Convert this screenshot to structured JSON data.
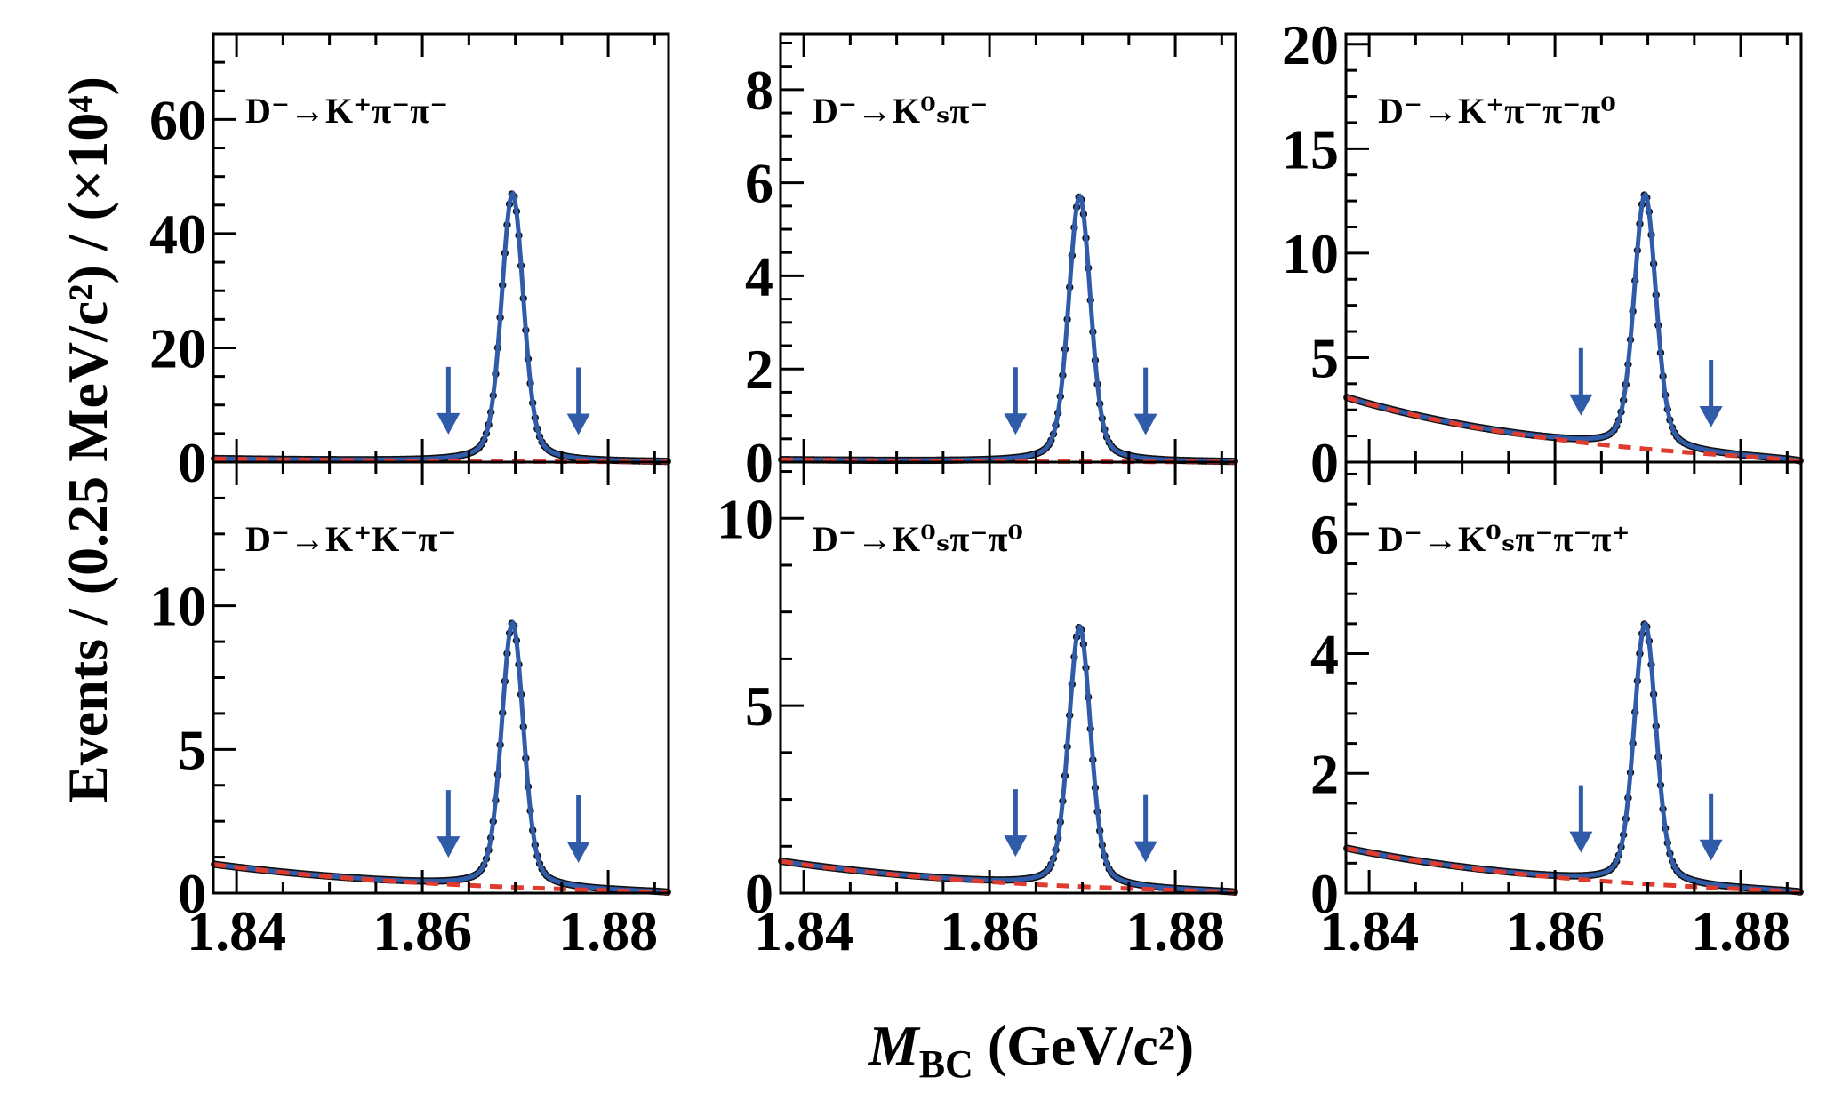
{
  "figure": {
    "ylabel": "Events / (0.25 MeV/c²) / (×10⁴)",
    "xlabel": "M_BC (GeV/c²)",
    "xlabel_main": "M",
    "xlabel_sub": "BC",
    "xlabel_rest": " (GeV/c²)"
  },
  "colors": {
    "signal_fit": "#2f5ba8",
    "background_fit": "#e03b2f",
    "data_points": "#111111",
    "arrow": "#2f5ba8"
  },
  "chart_data": [
    {
      "type": "scatter",
      "label": "D⁻→K⁺π⁻π⁻",
      "xlim": [
        1.8375,
        1.8865
      ],
      "ylim": [
        0,
        75
      ],
      "x_ticks": [
        "1.84",
        "1.86",
        "1.88"
      ],
      "y_ticks": [
        "0",
        "20",
        "40",
        "60"
      ],
      "signal_window": [
        1.8628,
        1.8768
      ],
      "peak_x": 1.8697,
      "peak_height": 47,
      "background_level": 0.6,
      "series": [
        {
          "name": "",
          "values": []
        }
      ]
    },
    {
      "type": "scatter",
      "label": "D⁻→K⁰ₛπ⁻",
      "xlim": [
        1.8375,
        1.8865
      ],
      "ylim": [
        0,
        9.2
      ],
      "x_ticks": [
        "1.84",
        "1.86",
        "1.88"
      ],
      "y_ticks": [
        "0",
        "2",
        "4",
        "6",
        "8"
      ],
      "signal_window": [
        1.8628,
        1.8768
      ],
      "peak_x": 1.8697,
      "peak_height": 5.7,
      "background_level": 0.05,
      "series": [
        {
          "name": "",
          "values": []
        }
      ]
    },
    {
      "type": "scatter",
      "label": "D⁻→K⁺π⁻π⁻π⁰",
      "xlim": [
        1.8375,
        1.8865
      ],
      "ylim": [
        0,
        20.5
      ],
      "x_ticks": [
        "1.84",
        "1.86",
        "1.88"
      ],
      "y_ticks": [
        "0",
        "5",
        "10",
        "15",
        "20"
      ],
      "signal_window": [
        1.8628,
        1.8768
      ],
      "peak_x": 1.8697,
      "peak_height": 12.8,
      "background_level": 3.1,
      "series": [
        {
          "name": "",
          "values": []
        }
      ]
    },
    {
      "type": "scatter",
      "label": "D⁻→K⁺K⁻π⁻",
      "xlim": [
        1.8375,
        1.8865
      ],
      "ylim": [
        0,
        15
      ],
      "x_ticks": [
        "1.84",
        "1.86",
        "1.88"
      ],
      "y_ticks": [
        "0",
        "5",
        "10"
      ],
      "signal_window": [
        1.8628,
        1.8768
      ],
      "peak_x": 1.8697,
      "peak_height": 9.4,
      "background_level": 1.0,
      "series": [
        {
          "name": "",
          "values": []
        }
      ]
    },
    {
      "type": "scatter",
      "label": "D⁻→K⁰ₛπ⁻π⁰",
      "xlim": [
        1.8375,
        1.8865
      ],
      "ylim": [
        0,
        11.5
      ],
      "x_ticks": [
        "1.84",
        "1.86",
        "1.88"
      ],
      "y_ticks": [
        "0",
        "5",
        "10"
      ],
      "signal_window": [
        1.8628,
        1.8768
      ],
      "peak_x": 1.8697,
      "peak_height": 7.1,
      "background_level": 0.85,
      "series": [
        {
          "name": "",
          "values": []
        }
      ]
    },
    {
      "type": "scatter",
      "label": "D⁻→K⁰ₛπ⁻π⁻π⁺",
      "xlim": [
        1.8375,
        1.8865
      ],
      "ylim": [
        0,
        7.2
      ],
      "x_ticks": [
        "1.84",
        "1.86",
        "1.88"
      ],
      "y_ticks": [
        "0",
        "2",
        "4",
        "6"
      ],
      "signal_window": [
        1.8628,
        1.8768
      ],
      "peak_x": 1.8697,
      "peak_height": 4.5,
      "background_level": 0.75,
      "series": [
        {
          "name": "",
          "values": []
        }
      ]
    }
  ]
}
